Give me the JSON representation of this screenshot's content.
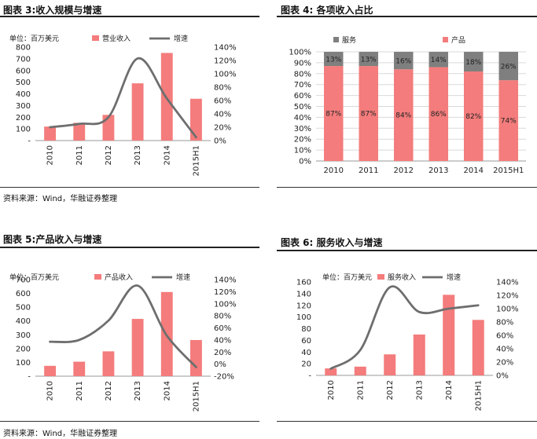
{
  "figures": {
    "f3": {
      "title": "图表 3:收入规模与增速"
    },
    "f4": {
      "title": "图表 4: 各项收入占比"
    },
    "f5": {
      "title": "图表 5:产品收入与增速"
    },
    "f6": {
      "title": "图表 6: 服务收入与增速"
    }
  },
  "sources": {
    "top": "资料来源：Wind，华融证券整理",
    "bottom": "资料来源：Wind，华融证券整理"
  },
  "colors": {
    "bar": "#f47c7c",
    "line": "#6e6e6e",
    "service": "#7f7f7f",
    "grid": "#d9d9d9"
  },
  "chart_data": [
    {
      "id": "f3",
      "type": "bar+line",
      "categories": [
        "2010",
        "2011",
        "2012",
        "2013",
        "2014",
        "2015H1"
      ],
      "unit_label": "单位：百万美元",
      "series": [
        {
          "name": "营业收入",
          "type": "bar",
          "axis": "left",
          "values": [
            120,
            152,
            220,
            490,
            750,
            358
          ]
        },
        {
          "name": "增速",
          "type": "line",
          "axis": "right",
          "values": [
            0.2,
            0.25,
            0.35,
            1.23,
            0.63,
            0.05
          ]
        }
      ],
      "left_axis": {
        "min": 0,
        "max": 800,
        "step": 100,
        "labels": [
          "-",
          "100",
          "200",
          "300",
          "400",
          "500",
          "600",
          "700",
          "800"
        ]
      },
      "right_axis": {
        "min": 0,
        "max": 1.4,
        "step": 0.2,
        "labels": [
          "0%",
          "20%",
          "40%",
          "60%",
          "80%",
          "100%",
          "120%",
          "140%"
        ]
      }
    },
    {
      "id": "f4",
      "type": "stacked-bar-100",
      "categories": [
        "2010",
        "2011",
        "2012",
        "2013",
        "2014",
        "2015H1"
      ],
      "series": [
        {
          "name": "服务",
          "values": [
            13,
            13,
            16,
            14,
            18,
            26
          ]
        },
        {
          "name": "产品",
          "values": [
            87,
            87,
            84,
            86,
            82,
            74
          ]
        }
      ],
      "axis": {
        "labels": [
          "0%",
          "10%",
          "20%",
          "30%",
          "40%",
          "50%",
          "60%",
          "70%",
          "80%",
          "90%",
          "100%"
        ]
      },
      "data_labels_service": [
        "13%",
        "13%",
        "16%",
        "14%",
        "18%",
        "26%"
      ],
      "data_labels_product": [
        "87%",
        "87%",
        "84%",
        "86%",
        "82%",
        "74%"
      ]
    },
    {
      "id": "f5",
      "type": "bar+line",
      "categories": [
        "2010",
        "2011",
        "2012",
        "2013",
        "2014",
        "2015H1"
      ],
      "unit_label": "单位：百万美元",
      "series": [
        {
          "name": "产品收入",
          "type": "bar",
          "axis": "left",
          "values": [
            75,
            105,
            180,
            415,
            610,
            262
          ]
        },
        {
          "name": "增速",
          "type": "line",
          "axis": "right",
          "values": [
            0.37,
            0.4,
            0.72,
            1.3,
            0.47,
            -0.05
          ]
        }
      ],
      "left_axis": {
        "min": 0,
        "max": 700,
        "step": 100,
        "labels": [
          "-",
          "100",
          "200",
          "300",
          "400",
          "500",
          "600",
          "700"
        ]
      },
      "right_axis": {
        "min": -0.2,
        "max": 1.4,
        "step": 0.2,
        "labels": [
          "-20%",
          "0%",
          "20%",
          "40%",
          "60%",
          "80%",
          "100%",
          "120%",
          "140%"
        ]
      }
    },
    {
      "id": "f6",
      "type": "bar+line",
      "categories": [
        "2010",
        "2011",
        "2012",
        "2013",
        "2014",
        "2015H1"
      ],
      "unit_label": "单位：百万美元",
      "series": [
        {
          "name": "服务收入",
          "type": "bar",
          "axis": "left",
          "values": [
            12,
            15,
            36,
            70,
            138,
            95
          ]
        },
        {
          "name": "增速",
          "type": "line",
          "axis": "right",
          "values": [
            0.1,
            0.38,
            1.32,
            0.95,
            1.0,
            1.05
          ]
        }
      ],
      "left_axis": {
        "min": 0,
        "max": 160,
        "step": 20,
        "labels": [
          "-",
          "20",
          "40",
          "60",
          "80",
          "100",
          "120",
          "140",
          "160"
        ]
      },
      "right_axis": {
        "min": 0,
        "max": 1.4,
        "step": 0.2,
        "labels": [
          "0%",
          "20%",
          "40%",
          "60%",
          "80%",
          "100%",
          "120%",
          "140%"
        ]
      }
    }
  ]
}
